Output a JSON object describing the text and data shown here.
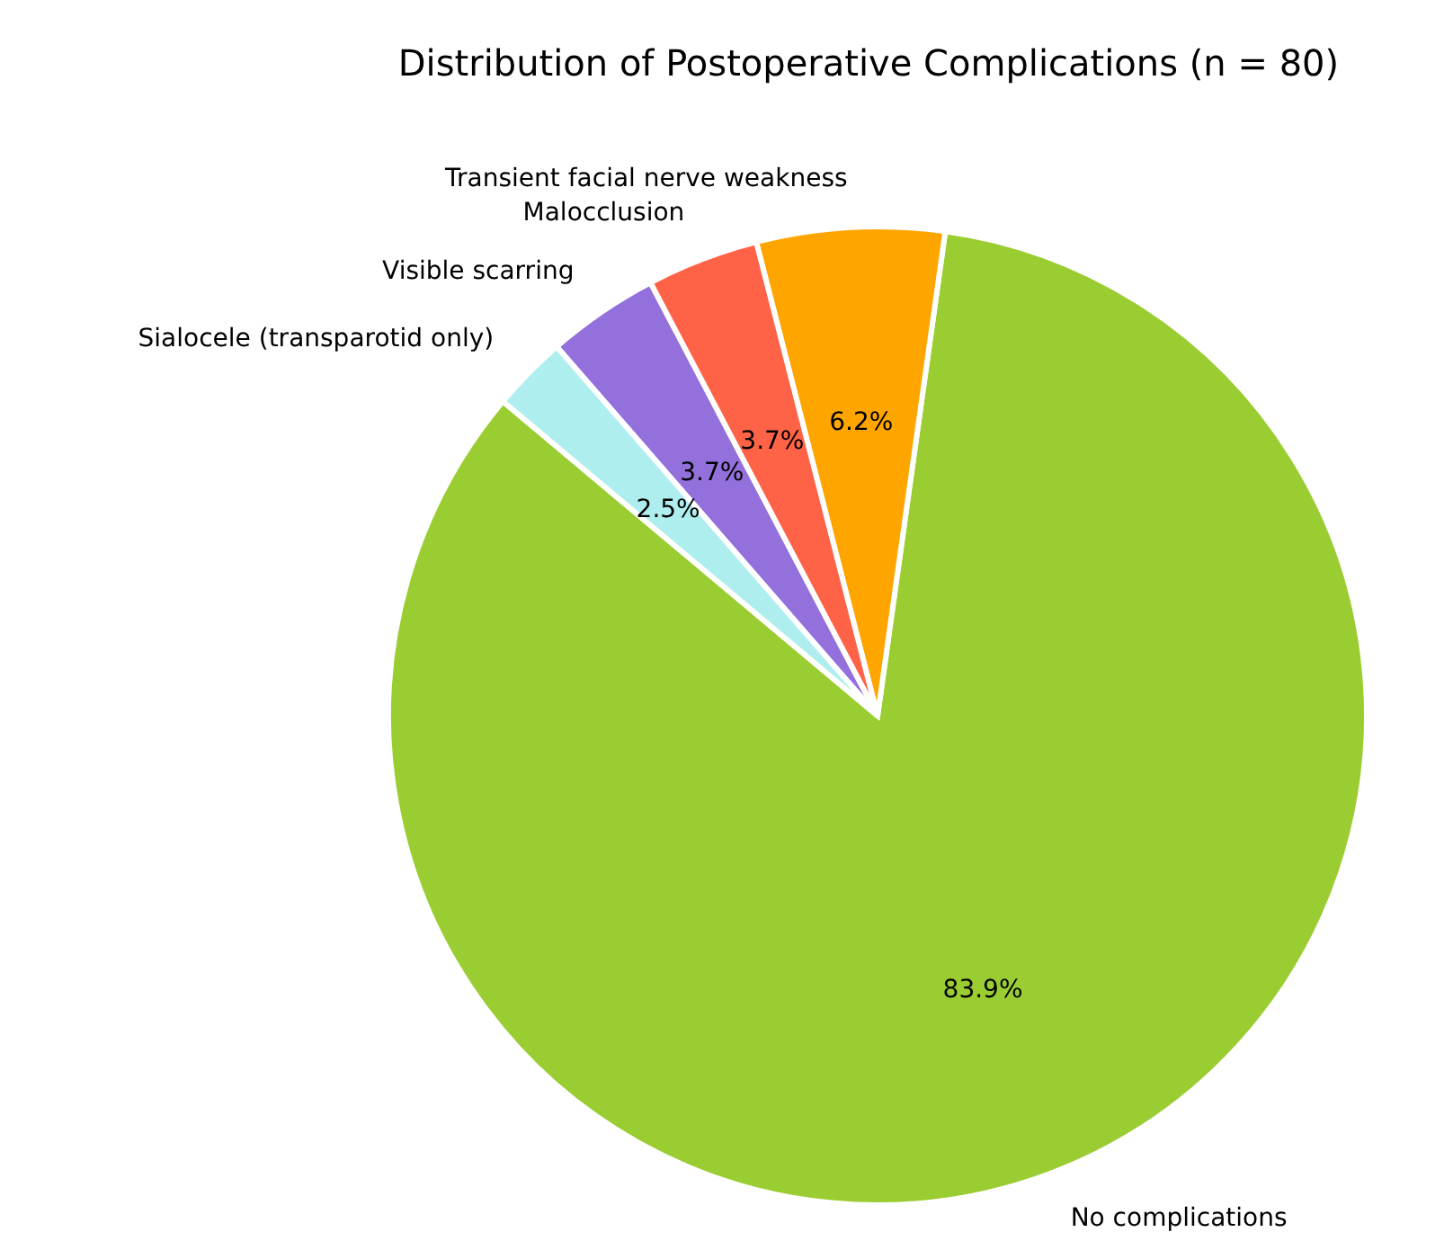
{
  "chart_data": {
    "type": "pie",
    "title": "Distribution of Postoperative Complications (n = 80)",
    "categories": [
      "No complications",
      "Transient facial nerve weakness",
      "Malocclusion",
      "Visible scarring",
      "Sialocele (transparotid only)"
    ],
    "values": [
      83.9,
      6.2,
      3.7,
      3.7,
      2.5
    ],
    "colors": [
      "#9acd32",
      "#ffa500",
      "#ff6347",
      "#9370db",
      "#afeeee"
    ],
    "value_labels": [
      "83.9%",
      "6.2%",
      "3.7%",
      "3.7%",
      "2.5%"
    ],
    "legend": false
  }
}
